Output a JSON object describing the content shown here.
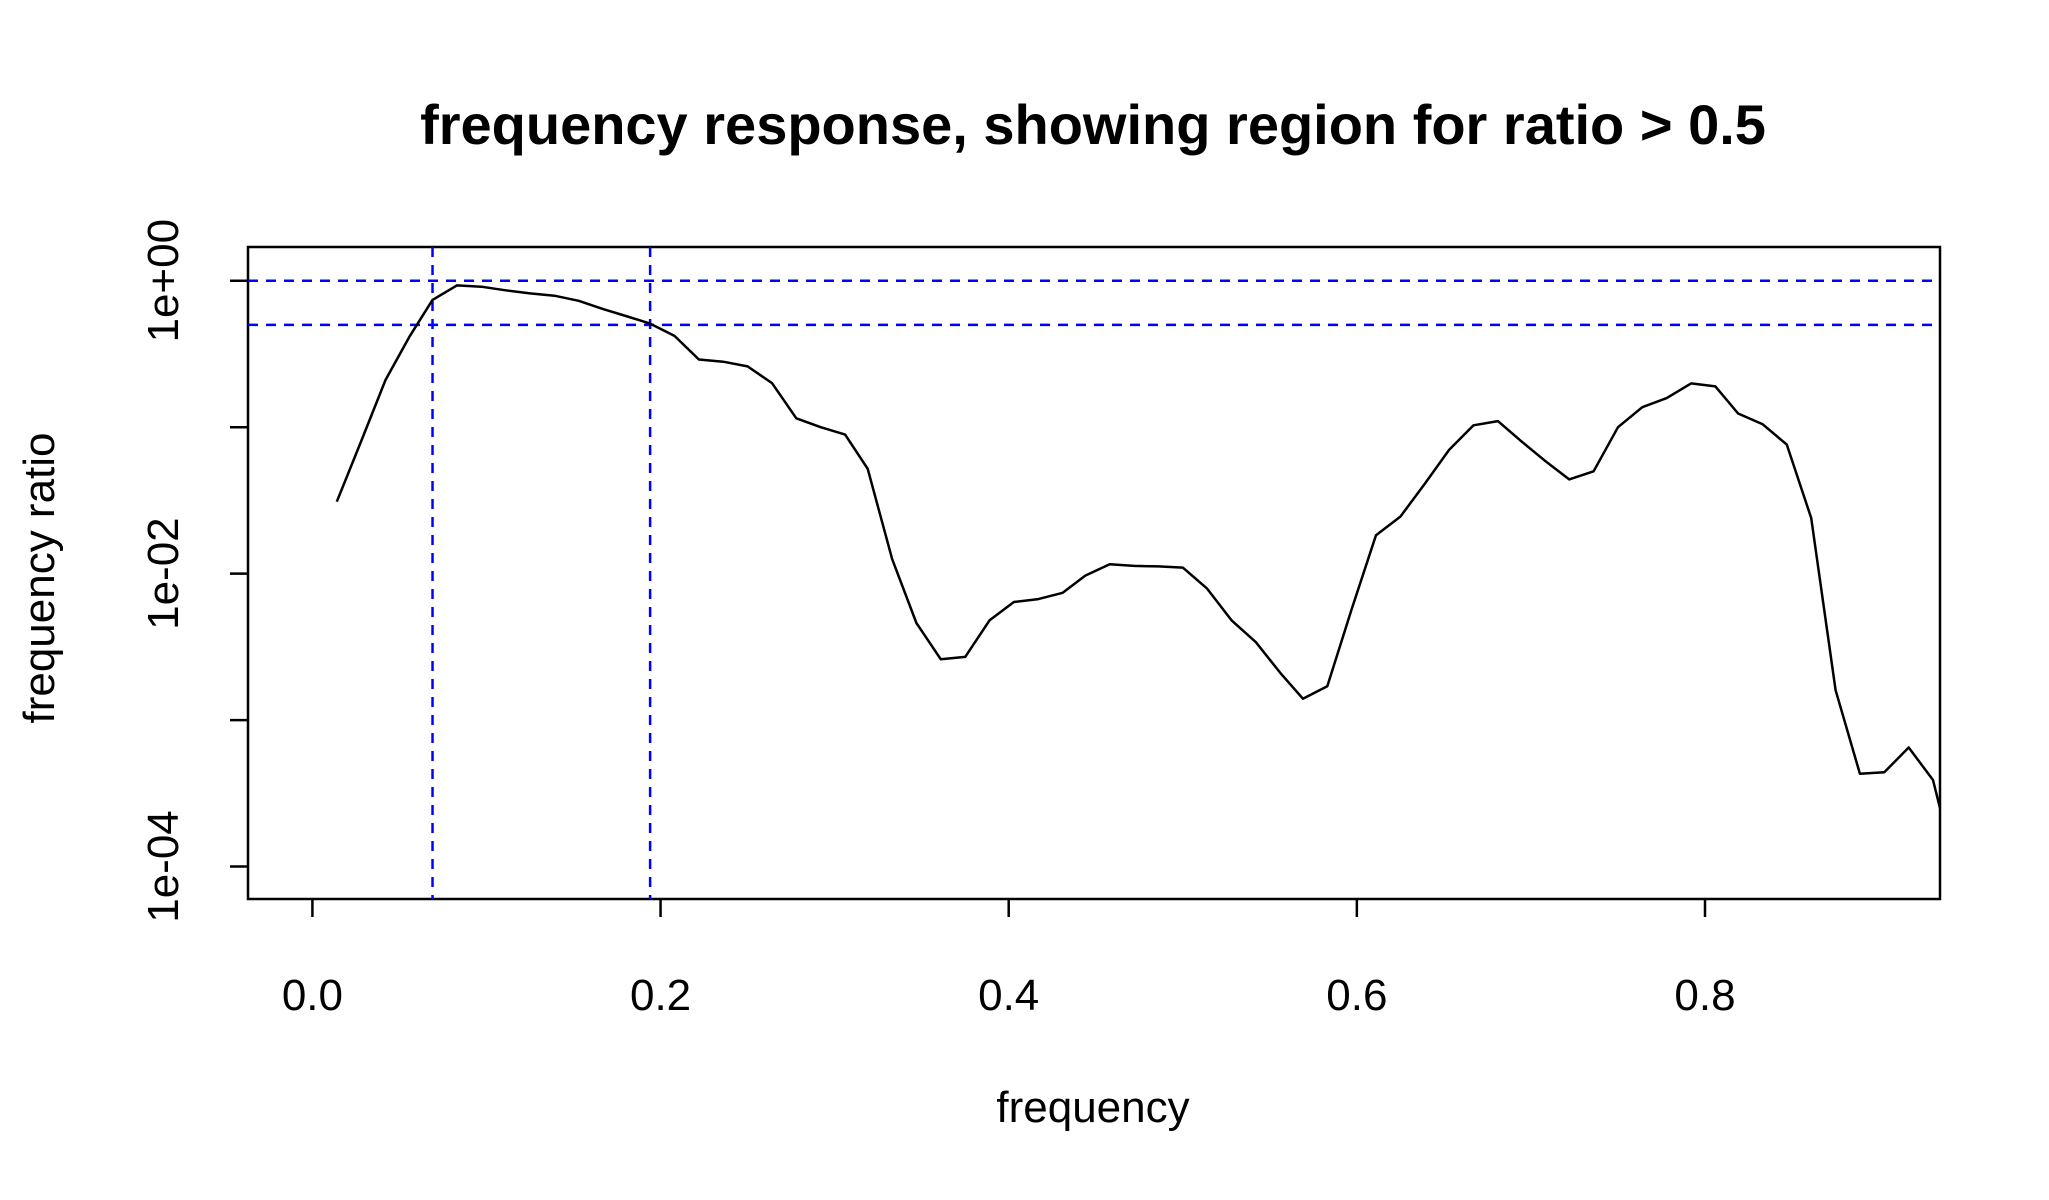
{
  "chart_data": {
    "type": "line",
    "title": "frequency response, showing region for ratio > 0.5",
    "xlabel": "frequency",
    "ylabel": "frequency ratio",
    "xlim": [
      -0.037,
      0.935
    ],
    "ylim": [
      6e-05,
      1.7
    ],
    "y_scale": "log",
    "grid": false,
    "legend": "none",
    "x_ticks": [
      {
        "value": 0.0,
        "label": "0.0"
      },
      {
        "value": 0.2,
        "label": "0.2"
      },
      {
        "value": 0.4,
        "label": "0.4"
      },
      {
        "value": 0.6,
        "label": "0.6"
      },
      {
        "value": 0.8,
        "label": "0.8"
      }
    ],
    "y_ticks": [
      {
        "value": 1,
        "label": "1e+00"
      },
      {
        "value": 0.1,
        "label": ""
      },
      {
        "value": 0.01,
        "label": "1e-02"
      },
      {
        "value": 0.001,
        "label": ""
      },
      {
        "value": 0.0001,
        "label": "1e-04"
      }
    ],
    "reference_lines": {
      "horizontal": [
        1.0,
        0.5
      ],
      "vertical": [
        0.069,
        0.194
      ],
      "color": "#0000ff",
      "style": "dashed"
    },
    "series": [
      {
        "color": "#000000",
        "x": [
          0.014,
          0.028,
          0.042,
          0.056,
          0.069,
          0.083,
          0.097,
          0.111,
          0.125,
          0.139,
          0.153,
          0.167,
          0.181,
          0.194,
          0.208,
          0.222,
          0.236,
          0.25,
          0.264,
          0.278,
          0.292,
          0.306,
          0.319,
          0.333,
          0.347,
          0.361,
          0.375,
          0.389,
          0.403,
          0.417,
          0.431,
          0.444,
          0.458,
          0.472,
          0.486,
          0.5,
          0.514,
          0.528,
          0.542,
          0.556,
          0.569,
          0.583,
          0.597,
          0.611,
          0.625,
          0.639,
          0.653,
          0.667,
          0.681,
          0.694,
          0.708,
          0.722,
          0.736,
          0.75,
          0.764,
          0.778,
          0.792,
          0.806,
          0.819,
          0.833,
          0.847,
          0.861,
          0.875,
          0.889,
          0.903,
          0.917,
          0.931,
          0.935
        ],
        "y": [
          0.031,
          0.08,
          0.21,
          0.42,
          0.74,
          0.93,
          0.91,
          0.86,
          0.82,
          0.79,
          0.73,
          0.64,
          0.57,
          0.51,
          0.42,
          0.29,
          0.28,
          0.26,
          0.2,
          0.115,
          0.1,
          0.089,
          0.052,
          0.0126,
          0.0046,
          0.0026,
          0.0027,
          0.0048,
          0.0064,
          0.0067,
          0.0074,
          0.0097,
          0.0116,
          0.0113,
          0.0112,
          0.011,
          0.0079,
          0.0048,
          0.0034,
          0.0021,
          0.0014,
          0.0017,
          0.0057,
          0.0183,
          0.0245,
          0.041,
          0.07,
          0.103,
          0.11,
          0.081,
          0.059,
          0.044,
          0.05,
          0.1,
          0.137,
          0.158,
          0.199,
          0.19,
          0.124,
          0.105,
          0.076,
          0.024,
          0.0016,
          0.00043,
          0.00044,
          0.00065,
          0.00039,
          0.00025
        ]
      }
    ]
  }
}
